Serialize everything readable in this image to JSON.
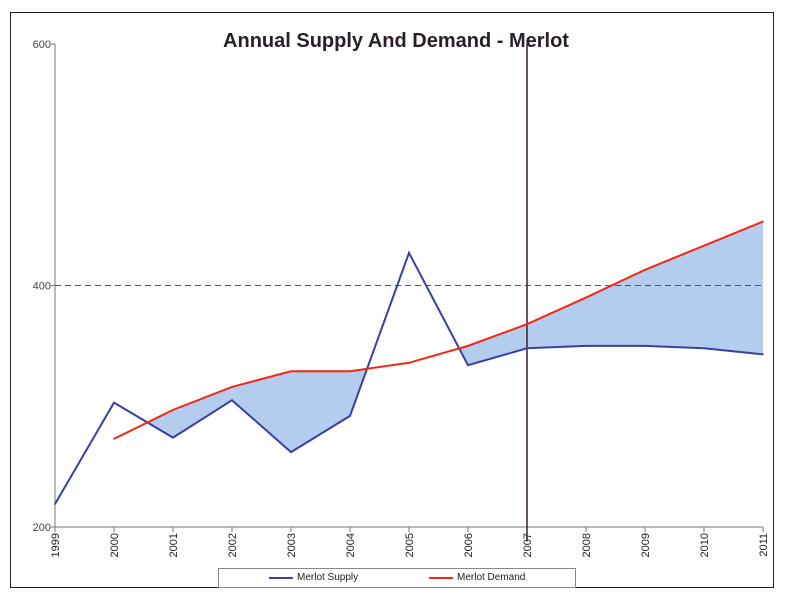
{
  "chart_data": {
    "type": "area",
    "title": "Annual Supply And Demand - Merlot",
    "xlabel": "",
    "ylabel": "",
    "x": [
      "1999",
      "2000",
      "2001",
      "2002",
      "2003",
      "2004",
      "2005",
      "2006",
      "2007",
      "2008",
      "2009",
      "2010",
      "2011"
    ],
    "ylim": [
      200,
      600
    ],
    "yticks": [
      "200",
      "400",
      "600"
    ],
    "series": [
      {
        "name": "Merlot Supply",
        "color": "#3a3fa0",
        "values": [
          219,
          303,
          274,
          305,
          262,
          292,
          427,
          334,
          348,
          350,
          350,
          348,
          343
        ]
      },
      {
        "name": "Merlot Demand",
        "color": "#ee2a14",
        "values": [
          null,
          273,
          297,
          316,
          329,
          329,
          336,
          350,
          368,
          390,
          413,
          433,
          453
        ]
      }
    ],
    "reference_line": {
      "type": "dashed-horizontal",
      "y": 400,
      "color": "#555555"
    },
    "marker_line": {
      "type": "vertical",
      "x": "2007",
      "y_from": 188,
      "y_to": 600,
      "color": "#3a1e2a"
    },
    "shaded_gap_color": "#b4cced",
    "legend_position": "bottom"
  }
}
